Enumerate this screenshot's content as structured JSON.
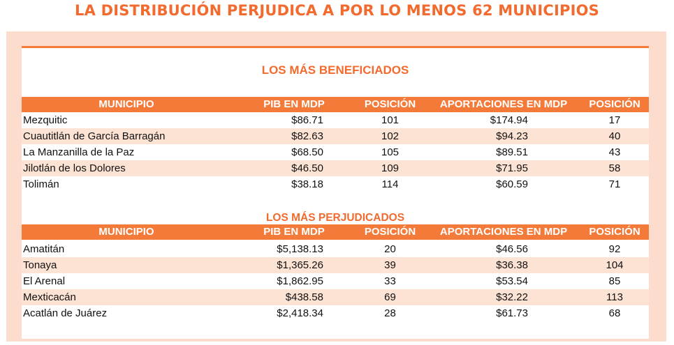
{
  "title": "LA DISTRIBUCIÓN PERJUDICA A POR LO MENOS 62 MUNICIPIOS",
  "colors": {
    "accent": "#f47a3a",
    "panel": "#fbdccd",
    "row_stripe": "#fde3d4"
  },
  "headers": {
    "municipio": "MUNICIPIO",
    "pib": "PIB EN MDP",
    "posicion_pib": "POSICIÓN",
    "aportaciones": "APORTACIONES EN MDP",
    "posicion_aport": "POSICIÓN"
  },
  "beneficiados": {
    "title": "LOS MÁS BENEFICIADOS",
    "rows": [
      {
        "municipio": "Mezquitic",
        "pib": "$86.71",
        "pos_pib": "101",
        "aport": "$174.94",
        "pos_aport": "17"
      },
      {
        "municipio": "Cuautitlán de García Barragán",
        "pib": "$82.63",
        "pos_pib": "102",
        "aport": "$94.23",
        "pos_aport": "40"
      },
      {
        "municipio": "La Manzanilla de la Paz",
        "pib": "$68.50",
        "pos_pib": "105",
        "aport": "$89.51",
        "pos_aport": "43"
      },
      {
        "municipio": "Jilotlán de los Dolores",
        "pib": "$46.50",
        "pos_pib": "109",
        "aport": "$71.95",
        "pos_aport": "58"
      },
      {
        "municipio": "Tolimán",
        "pib": "$38.18",
        "pos_pib": "114",
        "aport": "$60.59",
        "pos_aport": "71"
      }
    ]
  },
  "perjudicados": {
    "title": "LOS MÁS PERJUDICADOS",
    "rows": [
      {
        "municipio": "Amatitán",
        "pib": "$5,138.13",
        "pos_pib": "20",
        "aport": "$46.56",
        "pos_aport": "92"
      },
      {
        "municipio": "Tonaya",
        "pib": "$1,365.26",
        "pos_pib": "39",
        "aport": "$36.38",
        "pos_aport": "104"
      },
      {
        "municipio": "El Arenal",
        "pib": "$1,862.95",
        "pos_pib": "33",
        "aport": "$53.54",
        "pos_aport": "85"
      },
      {
        "municipio": "Mexticacán",
        "pib": "$438.58",
        "pos_pib": "69",
        "aport": "$32.22",
        "pos_aport": "113"
      },
      {
        "municipio": "Acatlán de Juárez",
        "pib": "$2,418.34",
        "pos_pib": "28",
        "aport": "$61.73",
        "pos_aport": "68"
      }
    ]
  }
}
